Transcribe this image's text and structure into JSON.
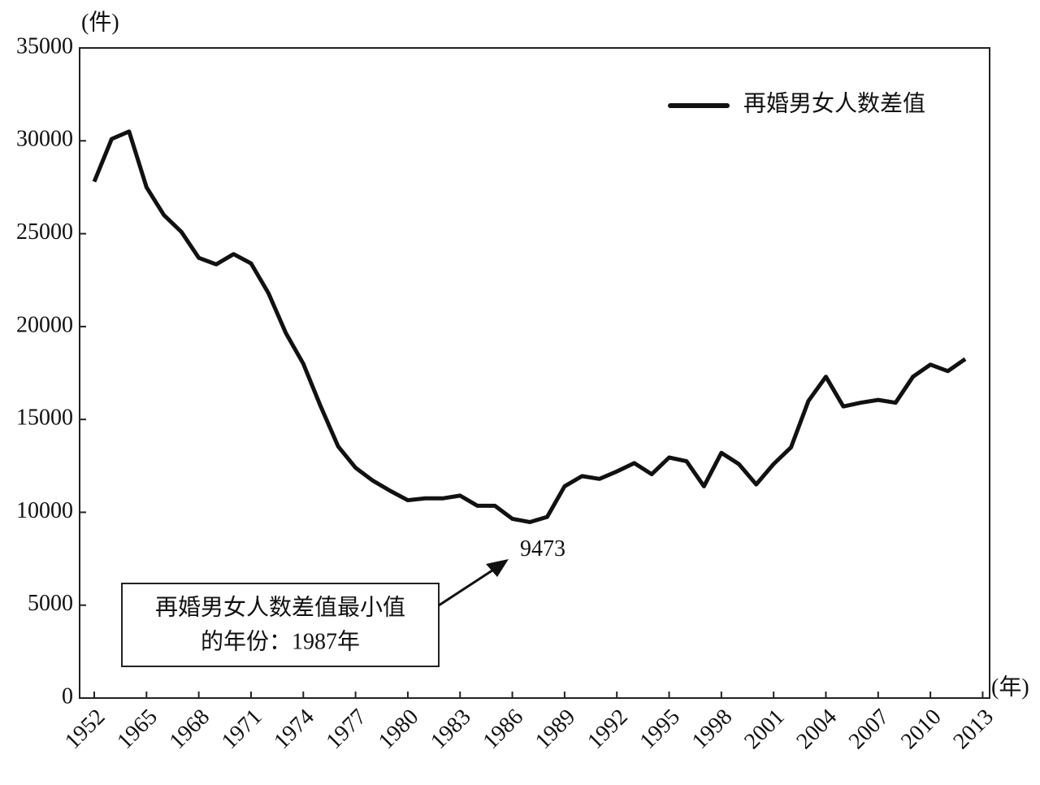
{
  "chart_data": {
    "type": "line",
    "y_label": "(件)",
    "x_label": "(年)",
    "categories": [
      "1952",
      null,
      null,
      "1965",
      null,
      null,
      "1968",
      null,
      null,
      "1971",
      null,
      null,
      "1974",
      null,
      null,
      "1977",
      null,
      null,
      "1980",
      null,
      null,
      "1983",
      null,
      null,
      "1986",
      null,
      null,
      "1989",
      null,
      null,
      "1992",
      null,
      null,
      "1995",
      null,
      null,
      "1998",
      null,
      null,
      "2001",
      null,
      null,
      "2004",
      null,
      null,
      "2007",
      null,
      null,
      "2010",
      null,
      null,
      "2013"
    ],
    "series": [
      {
        "name": "再婚男女人数差值",
        "color": "#111111",
        "values": [
          27800,
          30100,
          30500,
          27500,
          26000,
          25100,
          23700,
          23350,
          23900,
          23400,
          21800,
          19650,
          18000,
          15700,
          13550,
          12400,
          11700,
          11150,
          10650,
          10750,
          10750,
          10900,
          10350,
          10350,
          9650,
          9473,
          9750,
          11400,
          11950,
          11800,
          12200,
          12650,
          12050,
          12950,
          12750,
          11400,
          13200,
          12600,
          11500,
          12600,
          13500,
          16000,
          17300,
          15700,
          15900,
          16050,
          15900,
          17300,
          17950,
          17600,
          18250,
          null
        ]
      }
    ],
    "ylim": [
      0,
      35000
    ],
    "yticks": [
      0,
      5000,
      10000,
      15000,
      20000,
      25000,
      30000,
      35000
    ],
    "legend": "upper right",
    "annotation": {
      "lines": [
        "再婚男女人数差值最小值",
        "的年份：1987年"
      ],
      "point_label": "9473",
      "point_index": 25
    }
  }
}
